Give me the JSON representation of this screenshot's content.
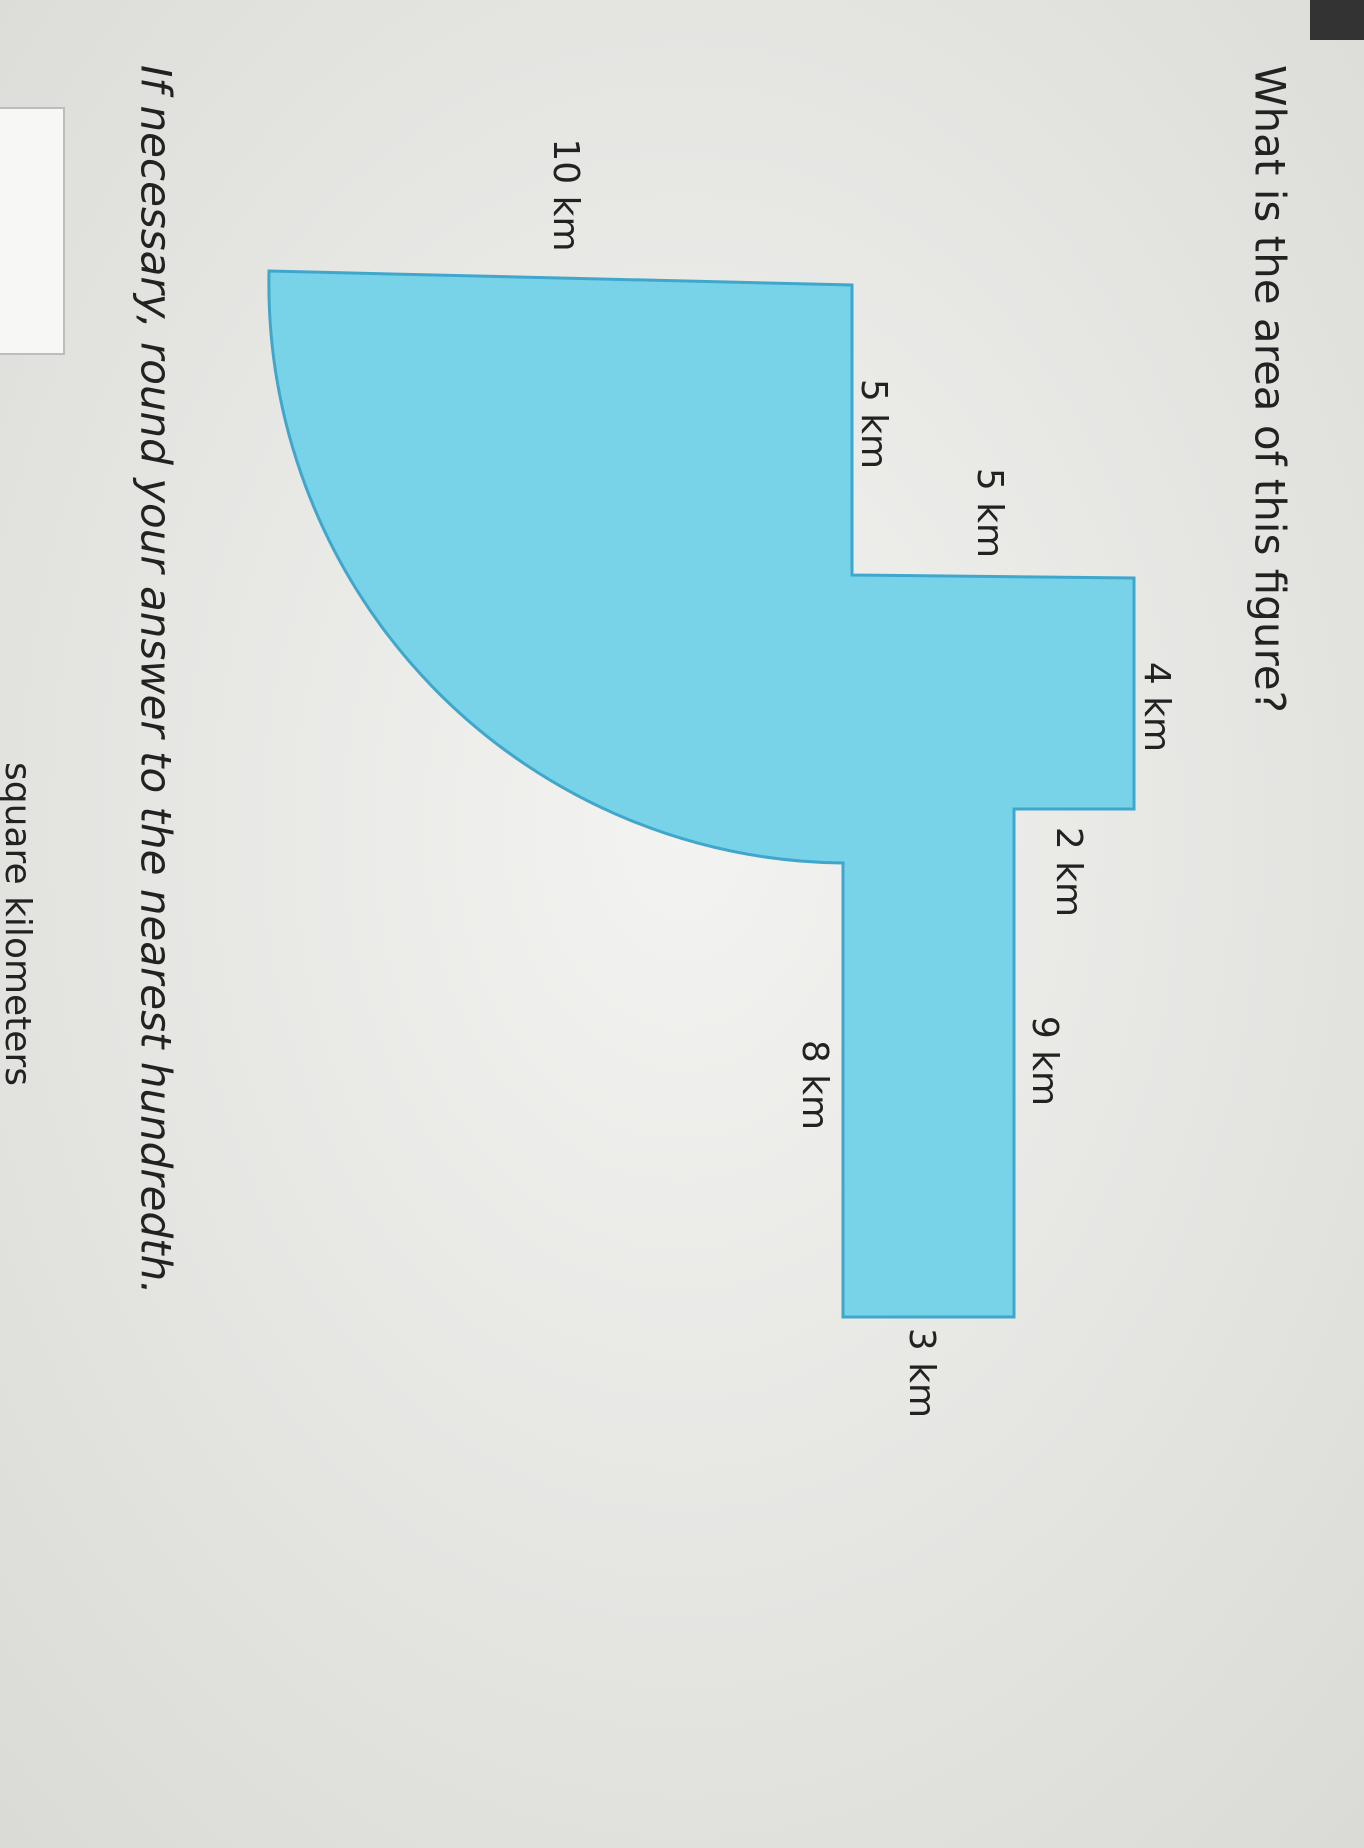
{
  "question": "What is the area of this figure?",
  "instruction": "If necessary, round your answer to the nearest hundredth.",
  "unit": "square kilometers",
  "labels": {
    "radius": "10 km",
    "left_step": "5 km",
    "step_height": "5 km",
    "top_width": "4 km",
    "top_step": "2 km",
    "right_side": "9 km",
    "inner_side": "8 km",
    "bottom": "3 km"
  }
}
